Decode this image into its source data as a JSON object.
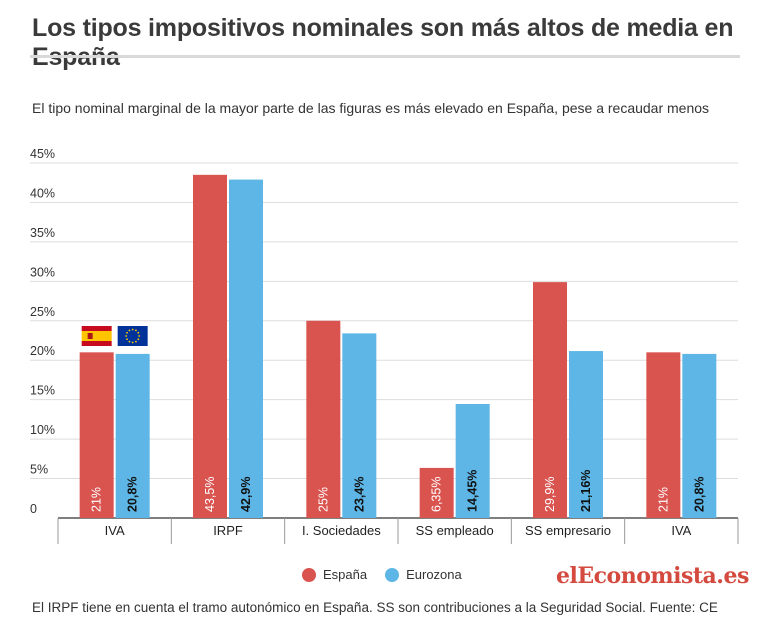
{
  "title": "Los tipos impositivos nominales son más altos de media en España",
  "subtitle": "El tipo nominal marginal de la mayor parte de las figuras es más elevado en España, pese a recaudar menos",
  "footnote": "El IRPF tiene en cuenta el tramo autonómico en España. SS son contribuciones a la Seguridad Social. Fuente: CE",
  "brand": "elEconomista.es",
  "colors": {
    "espana": "#d9534f",
    "eurozona": "#5db6e6",
    "grid": "#dddddd"
  },
  "chart_data": {
    "type": "bar",
    "categories": [
      "IVA",
      "IRPF",
      "I. Sociedades",
      "SS empleado",
      "SS empresario",
      "IVA"
    ],
    "series": [
      {
        "name": "España",
        "values": [
          21,
          43.5,
          25,
          6.35,
          29.9,
          21
        ],
        "labels": [
          "21%",
          "43,5%",
          "25%",
          "6,35%",
          "29,9%",
          "21%"
        ]
      },
      {
        "name": "Eurozona",
        "values": [
          20.8,
          42.9,
          23.4,
          14.45,
          21.16,
          20.8
        ],
        "labels": [
          "20,8%",
          "42,9%",
          "23,4%",
          "14,45%",
          "21,16%",
          "20,8%"
        ]
      }
    ],
    "ylim": [
      0,
      45
    ],
    "yticks": [
      0,
      5,
      10,
      15,
      20,
      25,
      30,
      35,
      40,
      45
    ],
    "ytick_labels": [
      "0",
      "5%",
      "10%",
      "15%",
      "20%",
      "25%",
      "30%",
      "35%",
      "40%",
      "45%"
    ],
    "grid": true,
    "legend_position": "bottom-center",
    "flag_icons": [
      "spain-flag-icon",
      "eu-flag-icon"
    ]
  }
}
